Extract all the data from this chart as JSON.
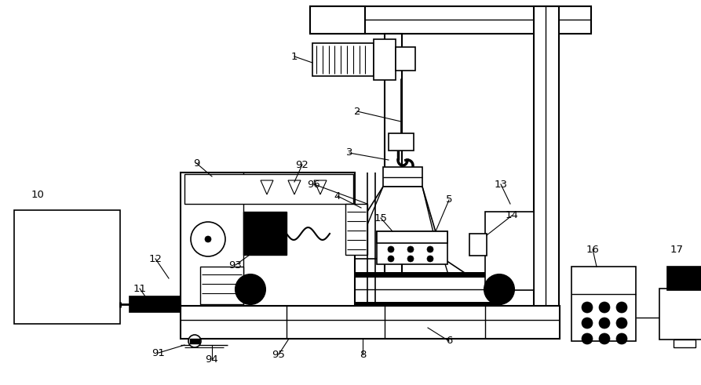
{
  "bg_color": "#ffffff",
  "lc": "#000000",
  "lw": 1.0,
  "figsize": [
    8.93,
    4.91
  ],
  "dpi": 100
}
